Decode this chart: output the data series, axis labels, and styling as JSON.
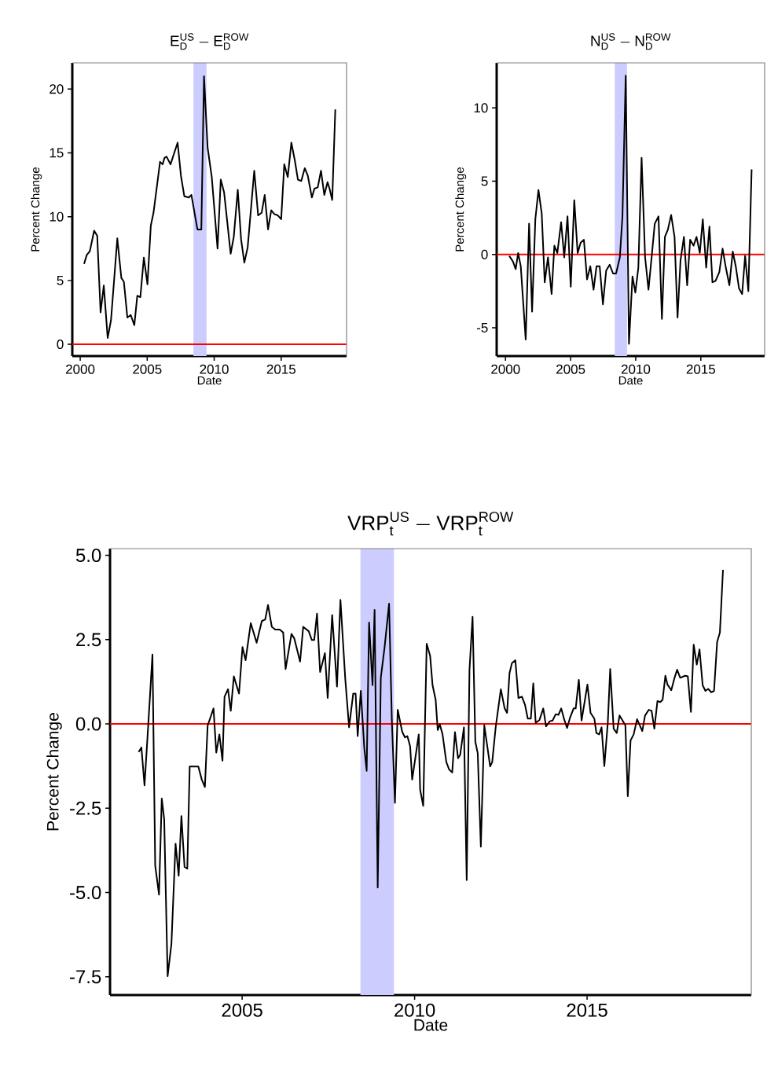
{
  "chart_data": [
    {
      "type": "line",
      "title": "\\mathrm{E}_{\\mathrm{D}}^{\\mathrm{US}}-\\mathrm{E}_{\\mathrm{D}}^{\\mathrm{ROW}}",
      "xlabel": "Date",
      "ylabel": "Percent Change",
      "xlim": [
        1999.41,
        2019.88
      ],
      "ylim": [
        -0.92,
        22.05
      ],
      "xticks": [
        2000,
        2005,
        2010,
        2015
      ],
      "yticks": [
        0,
        5,
        10,
        15,
        20
      ],
      "ref_lines": [
        {
          "axis": "y",
          "value": 0,
          "color": "#ff0000"
        }
      ],
      "bands": [
        {
          "axis": "x",
          "from": 2008.45,
          "to": 2009.43,
          "color": "#ccccff"
        }
      ],
      "series": [
        {
          "color": "#000000",
          "x": [
            2000.29,
            2000.49,
            2000.72,
            2001.04,
            2001.27,
            2001.52,
            2001.76,
            2002.05,
            2002.3,
            2002.77,
            2003.07,
            2003.26,
            2003.52,
            2003.77,
            2004.04,
            2004.26,
            2004.49,
            2004.75,
            2005.02,
            2005.27,
            2005.47,
            2005.96,
            2006.15,
            2006.29,
            2006.45,
            2006.74,
            2007.27,
            2007.52,
            2007.77,
            2008.11,
            2008.3,
            2008.75,
            2009.04,
            2009.24,
            2009.51,
            2009.82,
            2010.25,
            2010.49,
            2010.74,
            2011.23,
            2011.46,
            2011.76,
            2012.01,
            2012.25,
            2012.5,
            2012.99,
            2013.28,
            2013.54,
            2013.77,
            2014.02,
            2014.26,
            2014.49,
            2014.75,
            2015.0,
            2015.23,
            2015.49,
            2015.76,
            2016.02,
            2016.25,
            2016.5,
            2016.76,
            2016.99,
            2017.29,
            2017.48,
            2017.73,
            2017.97,
            2018.22,
            2018.46,
            2018.61,
            2018.81,
            2019.04
          ],
          "values": [
            6.3,
            7.0,
            7.3,
            8.9,
            8.5,
            2.5,
            4.6,
            0.5,
            1.9,
            8.3,
            5.2,
            4.9,
            2.1,
            2.3,
            1.5,
            3.8,
            3.7,
            6.8,
            4.7,
            9.3,
            10.3,
            14.3,
            14.1,
            14.6,
            14.7,
            14.1,
            15.8,
            13.2,
            11.6,
            11.5,
            11.7,
            9.0,
            9.0,
            21.0,
            15.4,
            13.1,
            7.5,
            12.9,
            11.9,
            7.1,
            8.4,
            12.1,
            8.2,
            6.4,
            7.6,
            13.6,
            10.1,
            10.3,
            11.7,
            9.0,
            10.5,
            10.2,
            10.1,
            9.8,
            14.1,
            13.1,
            15.8,
            14.4,
            12.9,
            12.8,
            13.8,
            13.2,
            11.5,
            12.2,
            12.3,
            13.6,
            11.7,
            12.7,
            12.2,
            11.3,
            18.4
          ]
        }
      ]
    },
    {
      "type": "line",
      "title": "\\mathrm{N}_{\\mathrm{D}}^{\\mathrm{US}}-\\mathrm{N}_{\\mathrm{D}}^{\\mathrm{ROW}}",
      "xlabel": "Date",
      "ylabel": "Percent Change",
      "xlim": [
        1999.32,
        2019.9
      ],
      "ylim": [
        -6.93,
        13.07
      ],
      "xticks": [
        2000,
        2005,
        2010,
        2015
      ],
      "yticks": [
        -5,
        0,
        5,
        10
      ],
      "ref_lines": [
        {
          "axis": "y",
          "value": 0,
          "color": "#ff0000"
        }
      ],
      "bands": [
        {
          "axis": "x",
          "from": 2008.39,
          "to": 2009.33,
          "color": "#ccccff"
        }
      ],
      "series": [
        {
          "color": "#000000",
          "x": [
            2000.29,
            2000.58,
            2000.78,
            2000.97,
            2001.17,
            2001.55,
            2001.81,
            2002.04,
            2002.29,
            2002.53,
            2002.78,
            2003.01,
            2003.26,
            2003.54,
            2003.75,
            2003.98,
            2004.27,
            2004.51,
            2004.76,
            2005.01,
            2005.28,
            2005.54,
            2005.77,
            2006.02,
            2006.26,
            2006.51,
            2006.76,
            2006.99,
            2007.23,
            2007.48,
            2007.73,
            2008.0,
            2008.26,
            2008.49,
            2008.78,
            2008.98,
            2009.23,
            2009.48,
            2009.75,
            2009.97,
            2010.2,
            2010.45,
            2010.72,
            2010.98,
            2011.23,
            2011.46,
            2011.75,
            2012.01,
            2012.24,
            2012.47,
            2012.72,
            2012.98,
            2013.21,
            2013.44,
            2013.7,
            2013.95,
            2014.18,
            2014.44,
            2014.67,
            2014.92,
            2015.15,
            2015.41,
            2015.66,
            2015.89,
            2016.13,
            2016.42,
            2016.67,
            2016.9,
            2017.19,
            2017.45,
            2017.68,
            2017.93,
            2018.17,
            2018.4,
            2018.65,
            2018.9
          ],
          "values": [
            -0.1,
            -0.5,
            -1.0,
            0.1,
            -0.8,
            -5.8,
            2.1,
            -3.9,
            2.4,
            4.4,
            2.8,
            -1.9,
            -0.2,
            -2.7,
            0.6,
            0.1,
            2.2,
            -0.2,
            2.6,
            -2.2,
            3.7,
            0.1,
            0.8,
            1.0,
            -1.7,
            -0.8,
            -2.4,
            -0.8,
            -0.8,
            -3.4,
            -1.1,
            -0.7,
            -1.3,
            -1.3,
            -0.2,
            2.6,
            12.2,
            -6.1,
            -1.5,
            -2.6,
            -0.9,
            6.6,
            -0.2,
            -2.4,
            -0.1,
            2.1,
            2.6,
            -4.4,
            1.2,
            1.7,
            2.7,
            1.2,
            -4.3,
            -0.4,
            1.2,
            -2.1,
            1.0,
            0.6,
            1.2,
            0.1,
            2.4,
            -0.9,
            1.9,
            -1.9,
            -1.8,
            -1.2,
            0.4,
            -0.8,
            -2.1,
            0.2,
            -0.8,
            -2.3,
            -2.7,
            -0.1,
            -2.5,
            5.8
          ]
        }
      ]
    },
    {
      "type": "line",
      "title": "\\mathrm{VRP}_{\\mathrm{t}}^{\\mathrm{US}}-\\mathrm{VRP}_{\\mathrm{t}}^{\\mathrm{ROW}}",
      "xlabel": "Date",
      "ylabel": "Percent Change",
      "xlim": [
        2001.17,
        2019.76
      ],
      "ylim": [
        -8.04,
        5.2
      ],
      "xticks": [
        2005,
        2010,
        2015
      ],
      "yticks": [
        {
          "value": -7.5,
          "label": "-7.5"
        },
        {
          "value": -5,
          "label": "-5.0"
        },
        {
          "value": -2.5,
          "label": "-2.5"
        },
        {
          "value": 0,
          "label": "0.0"
        },
        {
          "value": 2.5,
          "label": "2.5"
        },
        {
          "value": 5,
          "label": "5.0"
        }
      ],
      "ref_lines": [
        {
          "axis": "y",
          "value": 0,
          "color": "#ff0000"
        }
      ],
      "bands": [
        {
          "axis": "x",
          "from": 2008.43,
          "to": 2009.4,
          "color": "#ccccff"
        }
      ],
      "series": [
        {
          "color": "#000000",
          "x": [
            2002.0,
            2002.08,
            2002.17,
            2002.28,
            2002.4,
            2002.48,
            2002.59,
            2002.67,
            2002.74,
            2002.84,
            2002.95,
            2003.07,
            2003.16,
            2003.24,
            2003.33,
            2003.41,
            2003.48,
            2003.73,
            2003.83,
            2003.92,
            2004.0,
            2004.17,
            2004.25,
            2004.34,
            2004.43,
            2004.49,
            2004.59,
            2004.67,
            2004.76,
            2004.91,
            2005.01,
            2005.1,
            2005.25,
            2005.42,
            2005.57,
            2005.67,
            2005.75,
            2005.86,
            2005.96,
            2006.09,
            2006.19,
            2006.26,
            2006.43,
            2006.51,
            2006.68,
            2006.77,
            2006.93,
            2007.02,
            2007.09,
            2007.17,
            2007.26,
            2007.4,
            2007.48,
            2007.61,
            2007.75,
            2007.85,
            2007.99,
            2008.1,
            2008.22,
            2008.29,
            2008.35,
            2008.44,
            2008.54,
            2008.61,
            2008.68,
            2008.78,
            2008.84,
            2008.93,
            2009.02,
            2009.13,
            2009.26,
            2009.34,
            2009.43,
            2009.51,
            2009.64,
            2009.72,
            2009.79,
            2009.87,
            2009.93,
            2010.12,
            2010.16,
            2010.25,
            2010.35,
            2010.45,
            2010.52,
            2010.61,
            2010.67,
            2010.73,
            2010.81,
            2010.92,
            2011.0,
            2011.09,
            2011.17,
            2011.26,
            2011.32,
            2011.43,
            2011.51,
            2011.59,
            2011.68,
            2011.76,
            2011.83,
            2011.92,
            2012.02,
            2012.19,
            2012.25,
            2012.35,
            2012.5,
            2012.61,
            2012.68,
            2012.75,
            2012.82,
            2012.92,
            2013.01,
            2013.11,
            2013.2,
            2013.28,
            2013.37,
            2013.44,
            2013.51,
            2013.62,
            2013.73,
            2013.81,
            2013.92,
            2014.0,
            2014.09,
            2014.17,
            2014.25,
            2014.34,
            2014.42,
            2014.51,
            2014.61,
            2014.67,
            2014.76,
            2014.84,
            2015.01,
            2015.1,
            2015.21,
            2015.27,
            2015.35,
            2015.42,
            2015.5,
            2015.6,
            2015.67,
            2015.77,
            2015.86,
            2015.94,
            2016.11,
            2016.18,
            2016.26,
            2016.35,
            2016.45,
            2016.6,
            2016.68,
            2016.79,
            2016.87,
            2016.95,
            2017.04,
            2017.12,
            2017.19,
            2017.27,
            2017.33,
            2017.44,
            2017.53,
            2017.61,
            2017.7,
            2017.84,
            2017.92,
            2018.01,
            2018.09,
            2018.18,
            2018.26,
            2018.35,
            2018.43,
            2018.51,
            2018.6,
            2018.68,
            2018.77,
            2018.85,
            2018.94
          ],
          "values": [
            -0.83,
            -0.7,
            -1.82,
            0.0,
            2.06,
            -4.2,
            -5.06,
            -2.21,
            -2.82,
            -7.48,
            -6.53,
            -3.55,
            -4.5,
            -2.73,
            -4.24,
            -4.29,
            -1.26,
            -1.26,
            -1.65,
            -1.87,
            -0.05,
            0.46,
            -0.85,
            -0.31,
            -1.09,
            0.81,
            1.03,
            0.39,
            1.41,
            0.9,
            2.28,
            1.89,
            2.99,
            2.41,
            3.05,
            3.1,
            3.53,
            2.88,
            2.8,
            2.8,
            2.71,
            1.63,
            2.67,
            2.54,
            1.85,
            2.88,
            2.75,
            2.49,
            2.49,
            3.27,
            1.54,
            2.1,
            0.77,
            3.23,
            1.11,
            3.68,
            1.33,
            -0.1,
            0.9,
            0.9,
            -0.36,
            0.98,
            -0.7,
            -1.39,
            3.01,
            1.15,
            3.38,
            -4.85,
            1.37,
            2.28,
            3.57,
            0.12,
            -2.34,
            0.42,
            -0.23,
            -0.4,
            -0.36,
            -0.66,
            -1.65,
            -0.31,
            -1.95,
            -2.43,
            2.38,
            2.02,
            1.15,
            0.72,
            -0.18,
            -0.01,
            -0.31,
            -1.13,
            -1.35,
            -1.44,
            -0.24,
            -1.02,
            -0.92,
            -0.1,
            -4.63,
            1.59,
            3.18,
            -0.53,
            -0.87,
            -3.64,
            -0.04,
            -1.26,
            -1.13,
            -0.1,
            1.03,
            0.46,
            0.33,
            1.5,
            1.8,
            1.89,
            0.77,
            0.81,
            0.57,
            0.16,
            0.16,
            1.2,
            0.03,
            0.12,
            0.46,
            -0.07,
            0.08,
            0.1,
            0.29,
            0.27,
            0.46,
            0.12,
            -0.12,
            0.2,
            0.46,
            0.46,
            1.31,
            0.1,
            1.17,
            0.33,
            0.16,
            -0.27,
            -0.31,
            -0.1,
            -1.25,
            0.03,
            1.63,
            -0.14,
            -0.27,
            0.25,
            -0.04,
            -2.14,
            -0.49,
            -0.31,
            0.14,
            -0.21,
            0.25,
            0.42,
            0.39,
            -0.14,
            0.68,
            0.65,
            0.72,
            1.43,
            1.17,
            1.0,
            1.35,
            1.61,
            1.37,
            1.43,
            1.41,
            0.36,
            2.35,
            1.76,
            2.21,
            1.15,
            0.98,
            1.04,
            0.94,
            0.98,
            2.43,
            2.71,
            4.57
          ]
        }
      ]
    }
  ]
}
